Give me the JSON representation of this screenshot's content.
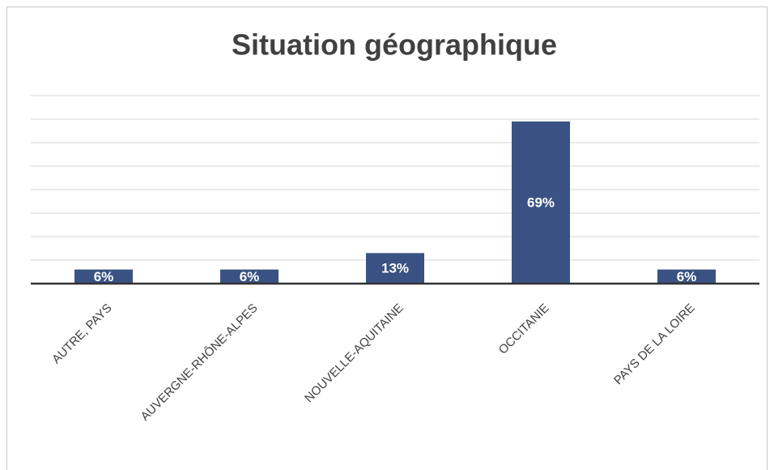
{
  "chart_data": {
    "type": "bar",
    "title": "Situation géographique",
    "categories": [
      "AUTRE, PAYS",
      "AUVERGNE-RHÔNE-ALPES",
      "NOUVELLE-AQUITAINE",
      "OCCITANIE",
      "PAYS DE LA LOIRE"
    ],
    "values": [
      6,
      6,
      13,
      69,
      6
    ],
    "value_labels": [
      "6%",
      "6%",
      "13%",
      "69%",
      "6%"
    ],
    "color": "#3a5283",
    "ylim": [
      0,
      80
    ],
    "yticks": [
      0,
      10,
      20,
      30,
      40,
      50,
      60,
      70,
      80
    ],
    "grid": true
  }
}
